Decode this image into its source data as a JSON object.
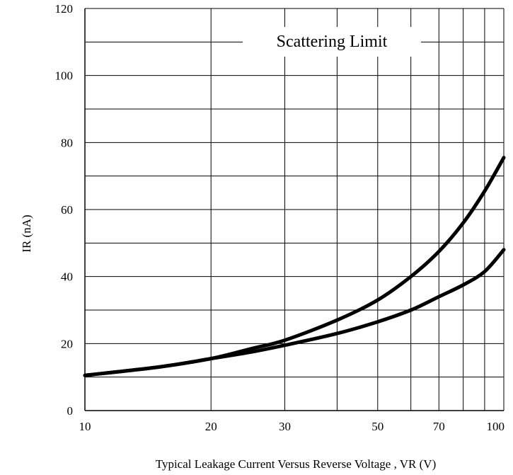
{
  "chart_data": {
    "type": "line",
    "xlabel": "Typical Leakage Current Versus Reverse Voltage , VR (V)",
    "ylabel": "IR (nA)",
    "x_scale": "log",
    "xlim": [
      10,
      100
    ],
    "ylim": [
      0,
      120
    ],
    "x_ticks": [
      {
        "value": 10,
        "label": "10"
      },
      {
        "value": 20,
        "label": "20"
      },
      {
        "value": 30,
        "label": "30"
      },
      {
        "value": 50,
        "label": "50"
      },
      {
        "value": 70,
        "label": "70"
      },
      {
        "value": 100,
        "label": "100"
      }
    ],
    "x_grid": [
      10,
      20,
      30,
      40,
      50,
      60,
      70,
      80,
      90,
      100
    ],
    "y_ticks": [
      {
        "value": 0,
        "label": "0"
      },
      {
        "value": 20,
        "label": "20"
      },
      {
        "value": 40,
        "label": "40"
      },
      {
        "value": 60,
        "label": "60"
      },
      {
        "value": 80,
        "label": "80"
      },
      {
        "value": 100,
        "label": "100"
      },
      {
        "value": 120,
        "label": "120"
      }
    ],
    "y_grid": [
      0,
      10,
      20,
      30,
      40,
      50,
      60,
      70,
      80,
      90,
      100,
      110,
      120
    ],
    "grid": true,
    "annotation": "Scattering Limit",
    "series": [
      {
        "x": [
          10,
          15,
          20,
          25,
          30,
          40,
          50,
          60,
          70,
          80,
          90,
          100
        ],
        "y": [
          10.5,
          13,
          15.5,
          18.5,
          21,
          27,
          33,
          40,
          47.5,
          56,
          65.5,
          75.5
        ]
      },
      {
        "x": [
          10,
          15,
          20,
          25,
          30,
          40,
          50,
          60,
          70,
          80,
          90,
          100
        ],
        "y": [
          10.5,
          13,
          15.5,
          17.5,
          19.5,
          23,
          26.5,
          30,
          34,
          37.5,
          41.5,
          48
        ]
      }
    ]
  }
}
